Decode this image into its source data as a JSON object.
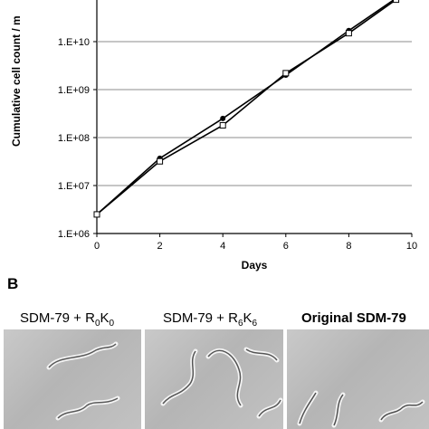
{
  "panel_b_label": "B",
  "images": [
    {
      "caption_main": "SDM-79 + R",
      "sub1": "0",
      "mid": "K",
      "sub2": "0"
    },
    {
      "caption_main": "SDM-79 + R",
      "sub1": "6",
      "mid": "K",
      "sub2": "6"
    },
    {
      "caption_main": "Original SDM-79",
      "sub1": "",
      "mid": "",
      "sub2": ""
    }
  ],
  "chart_data": {
    "type": "line",
    "xlabel": "Days",
    "ylabel": "Cumulative cell count / m",
    "xlim": [
      0,
      10
    ],
    "ylim_log10": [
      6,
      11
    ],
    "yscale": "log",
    "grid": true,
    "x_ticks": [
      "0",
      "2",
      "4",
      "6",
      "8",
      "10"
    ],
    "y_ticks": [
      "1.E+06",
      "1.E+07",
      "1.E+08",
      "1.E+09",
      "1.E+10"
    ],
    "series": [
      {
        "marker": "circle-filled",
        "x": [
          0,
          2,
          4,
          6,
          8,
          9.5
        ],
        "y": [
          2500000,
          37000000,
          250000000,
          2000000000,
          17000000000,
          80000000000
        ]
      },
      {
        "marker": "square-open",
        "x": [
          0,
          2,
          4,
          6,
          8,
          9.5
        ],
        "y": [
          2500000,
          32000000,
          180000000,
          2200000000,
          15000000000,
          75000000000
        ]
      }
    ]
  }
}
